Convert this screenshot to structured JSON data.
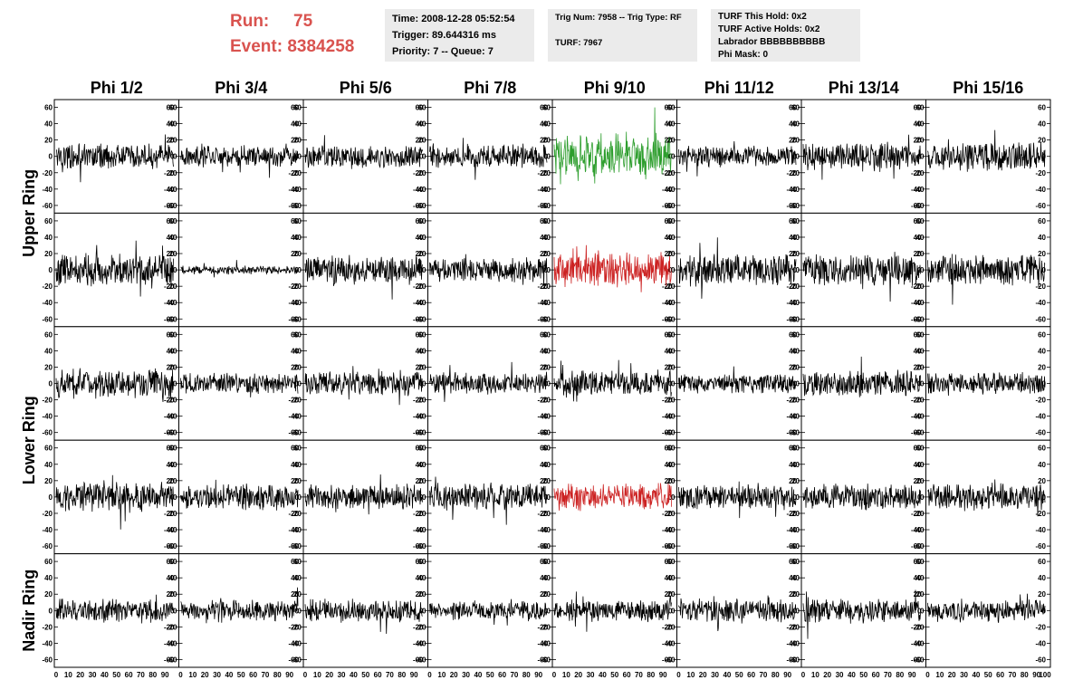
{
  "header": {
    "run_label": "Run:",
    "run_value": "75",
    "event_label": "Event:",
    "event_value": "8384258",
    "time": "Time: 2008-12-28 05:52:54",
    "trigger": "Trigger: 89.644316 ms",
    "priority": "Priority: 7 -- Queue: 7",
    "trig_num": "Trig Num: 7958 -- Trig Type: RF",
    "turf": "TURF: 7967",
    "turf_this_hold": "TURF This Hold: 0x2",
    "turf_active_holds": "TURF Active Holds: 0x2",
    "labrador": "Labrador BBBBBBBBBB",
    "phi_mask": "Phi Mask: 0"
  },
  "chart_data": {
    "type": "line",
    "columns": [
      "Phi 1/2",
      "Phi 3/4",
      "Phi 5/6",
      "Phi 7/8",
      "Phi 9/10",
      "Phi 11/12",
      "Phi 13/14",
      "Phi 15/16"
    ],
    "ring_labels": [
      "Upper Ring",
      "Lower Ring",
      "Nadir Ring"
    ],
    "rows": 5,
    "ylim": [
      -65,
      65
    ],
    "y_ticks": [
      -60,
      -40,
      -20,
      0,
      20,
      40,
      60
    ],
    "xlim": [
      0,
      100
    ],
    "x_ticks": [
      0,
      10,
      20,
      30,
      40,
      50,
      60,
      70,
      80,
      90
    ],
    "last_x_tick": "100",
    "trace_amplitude": [
      [
        12,
        10,
        11,
        12,
        22,
        10,
        14,
        14
      ],
      [
        16,
        4,
        14,
        12,
        16,
        15,
        15,
        15
      ],
      [
        14,
        10,
        12,
        10,
        13,
        10,
        13,
        11
      ],
      [
        14,
        13,
        12,
        13,
        13,
        12,
        12,
        13
      ],
      [
        12,
        10,
        11,
        9,
        10,
        12,
        12,
        10
      ]
    ],
    "trace_colors": [
      [
        "#000000",
        "#000000",
        "#000000",
        "#000000",
        "#2e9e2e",
        "#000000",
        "#000000",
        "#000000"
      ],
      [
        "#000000",
        "#000000",
        "#000000",
        "#000000",
        "#cc2222",
        "#000000",
        "#000000",
        "#000000"
      ],
      [
        "#000000",
        "#000000",
        "#000000",
        "#000000",
        "#000000",
        "#000000",
        "#000000",
        "#000000"
      ],
      [
        "#000000",
        "#000000",
        "#000000",
        "#000000",
        "#cc2222",
        "#000000",
        "#000000",
        "#000000"
      ],
      [
        "#000000",
        "#000000",
        "#000000",
        "#000000",
        "#000000",
        "#000000",
        "#000000",
        "#000000"
      ]
    ],
    "grid": false
  }
}
